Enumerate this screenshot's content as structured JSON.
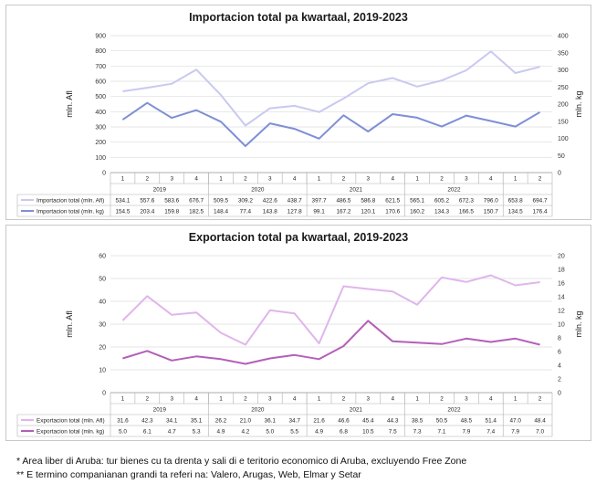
{
  "chart_data": [
    {
      "type": "line",
      "title": "Importacion total pa kwartaal, 2019-2023",
      "ylabel": "mln. Afl",
      "y2label": "mln. kg",
      "ylim": [
        0,
        900
      ],
      "yticks": [
        0,
        100,
        200,
        300,
        400,
        500,
        600,
        700,
        800,
        900
      ],
      "y2lim": [
        0,
        400
      ],
      "y2ticks": [
        0,
        50,
        100,
        150,
        200,
        250,
        300,
        350,
        400
      ],
      "quarters": [
        "1",
        "2",
        "3",
        "4",
        "1",
        "2",
        "3",
        "4",
        "1",
        "2",
        "3",
        "4",
        "1",
        "2",
        "3",
        "4",
        "1",
        "2"
      ],
      "years": [
        {
          "label": "2019",
          "span": 4
        },
        {
          "label": "2020",
          "span": 4
        },
        {
          "label": "2021",
          "span": 4
        },
        {
          "label": "2022",
          "span": 4
        },
        {
          "label": "",
          "span": 2
        }
      ],
      "series": [
        {
          "name": "Importacion total (mln. Afl)",
          "axis": "left",
          "color": "#c9c9f0",
          "values": [
            534.1,
            557.6,
            583.6,
            676.7,
            509.5,
            309.2,
            422.6,
            438.7,
            397.7,
            486.5,
            586.8,
            621.5,
            565.1,
            605.2,
            672.3,
            796.0,
            653.8,
            694.7
          ],
          "labels": [
            "534.1",
            "557.6",
            "583.6",
            "676.7",
            "509.5",
            "309.2",
            "422.6",
            "438.7",
            "397.7",
            "486.5",
            "586.8",
            "621.5",
            "565.1",
            "605.2",
            "672.3",
            "796.0",
            "653.8",
            "694.7"
          ]
        },
        {
          "name": "Importacion total (mln. kg)",
          "axis": "right",
          "color": "#7e8fd6",
          "values": [
            154.5,
            203.4,
            159.8,
            182.5,
            148.4,
            77.4,
            143.8,
            127.8,
            99.1,
            167.2,
            120.1,
            170.6,
            160.2,
            134.3,
            166.5,
            150.7,
            134.5,
            176.4
          ],
          "labels": [
            "154.5",
            "203.4",
            "159.8",
            "182.5",
            "148.4",
            "77.4",
            "143.8",
            "127.8",
            "99.1",
            "167.2",
            "120.1",
            "170.6",
            "160.2",
            "134.3",
            "166.5",
            "150.7",
            "134.5",
            "176.4"
          ]
        }
      ]
    },
    {
      "type": "line",
      "title": "Exportacion total pa kwartaal, 2019-2023",
      "ylabel": "mln. Afl",
      "y2label": "mln. kg",
      "ylim": [
        0,
        60
      ],
      "yticks": [
        0,
        10,
        20,
        30,
        40,
        50,
        60
      ],
      "y2lim": [
        0,
        20
      ],
      "y2ticks": [
        0,
        2,
        4,
        6,
        8,
        10,
        12,
        14,
        16,
        18,
        20
      ],
      "quarters": [
        "1",
        "2",
        "3",
        "4",
        "1",
        "2",
        "3",
        "4",
        "1",
        "2",
        "3",
        "4",
        "1",
        "2",
        "3",
        "4",
        "1",
        "2"
      ],
      "years": [
        {
          "label": "2019",
          "span": 4
        },
        {
          "label": "2020",
          "span": 4
        },
        {
          "label": "2021",
          "span": 4
        },
        {
          "label": "2022",
          "span": 4
        },
        {
          "label": "",
          "span": 2
        }
      ],
      "series": [
        {
          "name": "Exportacion total (mln. Afl)",
          "axis": "left",
          "color": "#dfb6ea",
          "values": [
            31.6,
            42.3,
            34.1,
            35.1,
            26.2,
            21.0,
            36.1,
            34.7,
            21.6,
            46.6,
            45.4,
            44.3,
            38.5,
            50.5,
            48.5,
            51.4,
            47.0,
            48.4
          ],
          "labels": [
            "31.6",
            "42.3",
            "34.1",
            "35.1",
            "26.2",
            "21.0",
            "36.1",
            "34.7",
            "21.6",
            "46.6",
            "45.4",
            "44.3",
            "38.5",
            "50.5",
            "48.5",
            "51.4",
            "47.0",
            "48.4"
          ]
        },
        {
          "name": "Exportacion total (mln. kg)",
          "axis": "right",
          "color": "#b45fb8",
          "values": [
            5.0,
            6.1,
            4.7,
            5.3,
            4.9,
            4.2,
            5.0,
            5.5,
            4.9,
            6.8,
            10.5,
            7.5,
            7.3,
            7.1,
            7.9,
            7.4,
            7.9,
            7.0
          ],
          "labels": [
            "5.0",
            "6.1",
            "4.7",
            "5.3",
            "4.9",
            "4.2",
            "5.0",
            "5.5",
            "4.9",
            "6.8",
            "10.5",
            "7.5",
            "7.3",
            "7.1",
            "7.9",
            "7.4",
            "7.9",
            "7.0"
          ]
        }
      ]
    }
  ],
  "notes": [
    "* Area liber di Aruba: tur bienes cu ta drenta y sali di e teritorio economico di Aruba, excluyendo Free Zone",
    "** E termino companianan grandi ta referi na: Valero, Arugas, Web, Elmar y Setar"
  ]
}
